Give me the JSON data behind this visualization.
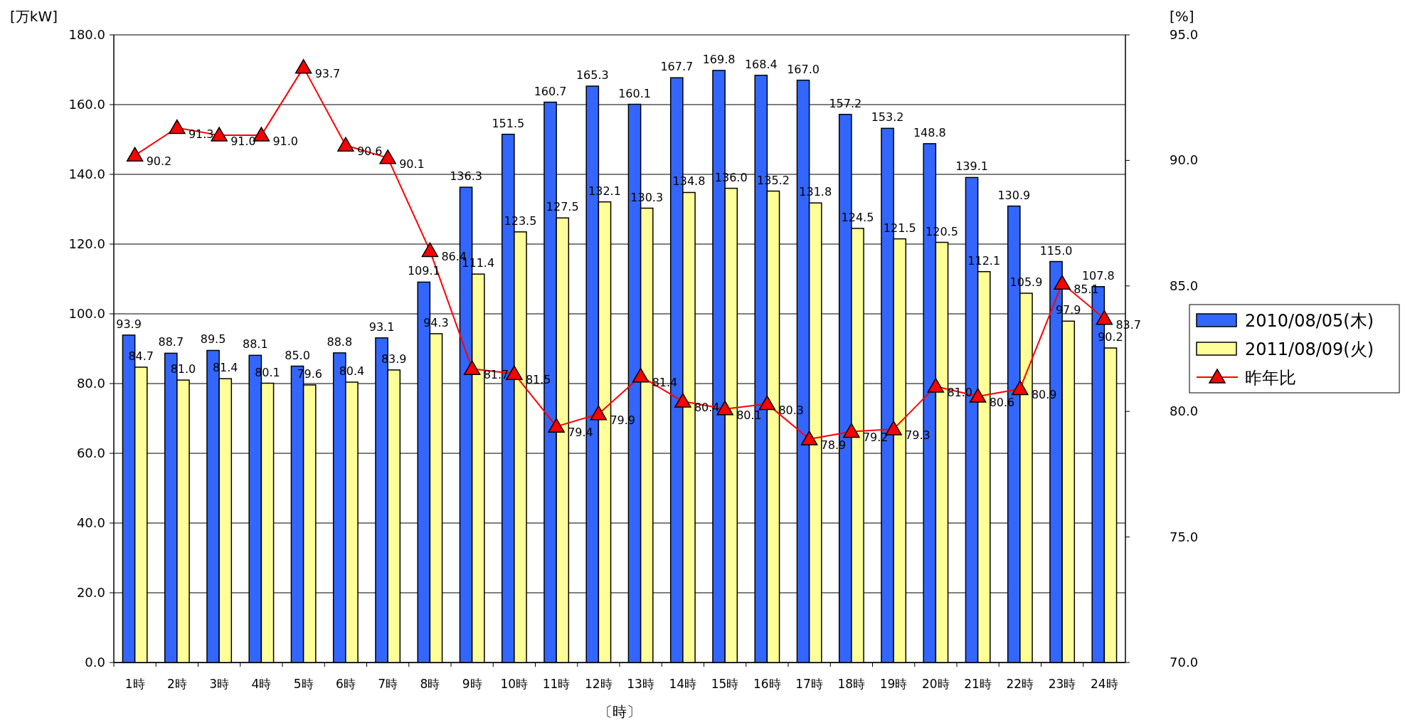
{
  "chart_data": {
    "type": "bar",
    "xlabel": "〔時〕",
    "ylabel": "[万kW]",
    "y2label": "[%]",
    "categories": [
      "1時",
      "2時",
      "3時",
      "4時",
      "5時",
      "6時",
      "7時",
      "8時",
      "9時",
      "10時",
      "11時",
      "12時",
      "13時",
      "14時",
      "15時",
      "16時",
      "17時",
      "18時",
      "19時",
      "20時",
      "21時",
      "22時",
      "23時",
      "24時"
    ],
    "series": [
      {
        "name": "2010/08/05(木)",
        "color": "#3366ff",
        "values": [
          93.9,
          88.7,
          89.5,
          88.1,
          85.0,
          88.8,
          93.1,
          109.1,
          136.3,
          151.5,
          160.7,
          165.3,
          160.1,
          167.7,
          169.8,
          168.4,
          167.0,
          157.2,
          153.2,
          148.8,
          139.1,
          130.9,
          115.0,
          107.8
        ],
        "value_labels": [
          "93.9",
          "88.7",
          "89.5",
          "88.1",
          "85.0",
          "88.8",
          "93.1",
          "109.1",
          "136.3",
          "151.5",
          "160.7",
          "165.3",
          "160.1",
          "167.7",
          "169.8",
          "168.4",
          "167.0",
          "157.2",
          "153.2",
          "148.8",
          "139.1",
          "130.9",
          "115.0",
          "107.8"
        ]
      },
      {
        "name": "2011/08/09(火)",
        "color": "#ffff99",
        "values": [
          84.7,
          81.0,
          81.4,
          80.1,
          79.6,
          80.4,
          83.9,
          94.3,
          111.4,
          123.5,
          127.5,
          132.1,
          130.3,
          134.8,
          136.0,
          135.2,
          131.8,
          124.5,
          121.5,
          120.5,
          112.1,
          105.9,
          97.9,
          90.2
        ],
        "value_labels": [
          "84.7",
          "81.0",
          "81.4",
          "80.1",
          "79.6",
          "80.4",
          "83.9",
          "94.3",
          "111.4",
          "123.5",
          "127.5",
          "132.1",
          "130.3",
          "134.8",
          "136.0",
          "135.2",
          "131.8",
          "124.5",
          "121.5",
          "120.5",
          "112.1",
          "105.9",
          "97.9",
          "90.2"
        ]
      },
      {
        "name": "昨年比",
        "type": "line",
        "axis": "y2",
        "color": "#ff0000",
        "marker": "triangle",
        "values": [
          90.2,
          91.3,
          91.0,
          91.0,
          93.7,
          90.6,
          90.1,
          86.4,
          81.7,
          81.5,
          79.4,
          79.9,
          81.4,
          80.4,
          80.1,
          80.3,
          78.9,
          79.2,
          79.3,
          81.0,
          80.6,
          80.9,
          85.1,
          83.7
        ],
        "value_labels": [
          "90.2",
          "91.3",
          "91.0",
          "91.0",
          "93.7",
          "90.6",
          "90.1",
          "86.4",
          "81.7",
          "81.5",
          "79.4",
          "79.9",
          "81.4",
          "80.4",
          "80.1",
          "80.3",
          "78.9",
          "79.2",
          "79.3",
          "81.0",
          "80.6",
          "80.9",
          "85.1",
          "83.7"
        ]
      }
    ],
    "ylim": [
      0,
      180
    ],
    "yticks": [
      {
        "value": 0,
        "label": "0.0"
      },
      {
        "value": 20,
        "label": "20.0"
      },
      {
        "value": 40,
        "label": "40.0"
      },
      {
        "value": 60,
        "label": "60.0"
      },
      {
        "value": 80,
        "label": "80.0"
      },
      {
        "value": 100,
        "label": "100.0"
      },
      {
        "value": 120,
        "label": "120.0"
      },
      {
        "value": 140,
        "label": "140.0"
      },
      {
        "value": 160,
        "label": "160.0"
      },
      {
        "value": 180,
        "label": "180.0"
      }
    ],
    "y2lim": [
      70,
      95
    ],
    "y2ticks": [
      {
        "value": 70,
        "label": "70.0"
      },
      {
        "value": 75,
        "label": "75.0"
      },
      {
        "value": 80,
        "label": "80.0"
      },
      {
        "value": 85,
        "label": "85.0"
      },
      {
        "value": 90,
        "label": "90.0"
      },
      {
        "value": 95,
        "label": "95.0"
      }
    ],
    "grid": "y",
    "legend": "right"
  }
}
